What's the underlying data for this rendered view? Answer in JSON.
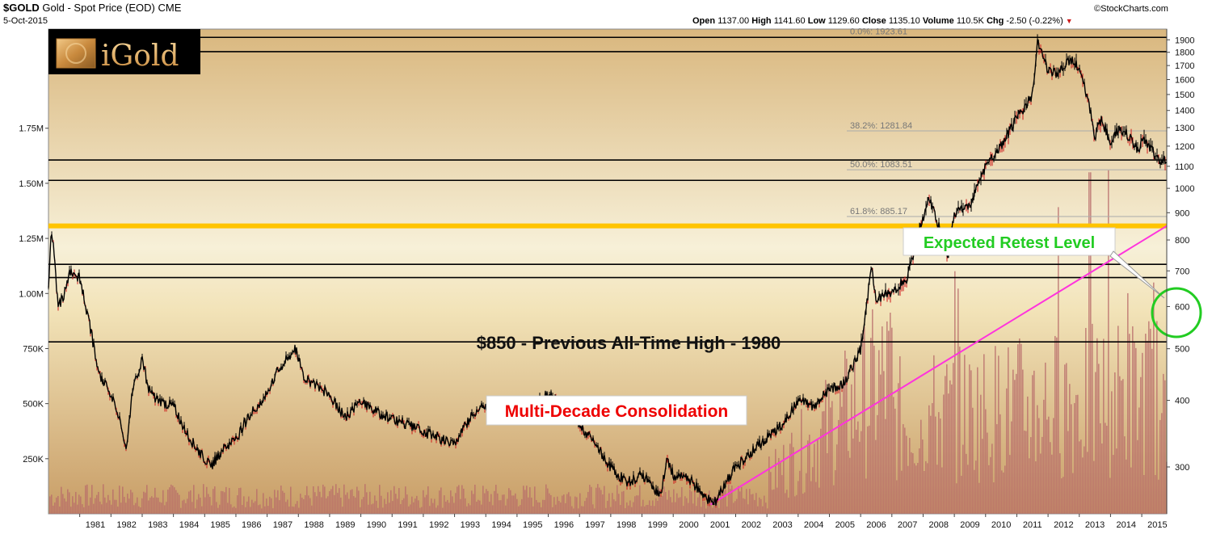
{
  "header": {
    "symbol": "$GOLD",
    "description": "Gold - Spot Price (EOD)",
    "exchange": "CME",
    "date": "5-Oct-2015",
    "source": "©StockCharts.com",
    "quote": {
      "open_label": "Open",
      "open": "1137.00",
      "high_label": "High",
      "high": "1141.60",
      "low_label": "Low",
      "low": "1129.60",
      "close_label": "Close",
      "close": "1135.10",
      "volume_label": "Volume",
      "volume": "110.5K",
      "chg_label": "Chg",
      "chg": "-2.50 (-0.22%)",
      "chg_arrow": "▼"
    }
  },
  "logo": {
    "text": "iGold"
  },
  "colors": {
    "bg_top": "#f6efd5",
    "bg_bottom": "#c9a06a",
    "price_up": "#000000",
    "price_down": "#cc1a1a",
    "volume": "#b76a6a",
    "highlight": "#ffc400",
    "trendline": "#ff33dd",
    "green": "#22cc22",
    "red_text": "#ee0000"
  },
  "chart_data": {
    "type": "line",
    "title": "$GOLD Gold - Spot Price (EOD) CME",
    "x_ticks": [
      "1981",
      "1982",
      "1983",
      "1984",
      "1985",
      "1986",
      "1987",
      "1988",
      "1989",
      "1990",
      "1991",
      "1992",
      "1993",
      "1994",
      "1995",
      "1996",
      "1997",
      "1998",
      "1999",
      "2000",
      "2001",
      "2002",
      "2003",
      "2004",
      "2005",
      "2006",
      "2007",
      "2008",
      "2009",
      "2010",
      "2011",
      "2012",
      "2013",
      "2014",
      "2015"
    ],
    "xlim": [
      1980.0,
      2015.8
    ],
    "price_axis": {
      "scale": "log",
      "ylim": [
        245,
        1990
      ],
      "ticks": [
        300,
        400,
        500,
        600,
        700,
        800,
        900,
        1000,
        1100,
        1200,
        1300,
        1400,
        1500,
        1600,
        1700,
        1800,
        1900
      ],
      "tick_labels": [
        "300",
        "400",
        "500",
        "600",
        "700",
        "800",
        "900",
        "1000",
        "1100",
        "1200",
        "1300",
        "1400",
        "1500",
        "1600",
        "1700",
        "1800",
        "1900"
      ]
    },
    "volume_axis": {
      "ylim": [
        0,
        2200000
      ],
      "ticks": [
        250000,
        500000,
        750000,
        1000000,
        1250000,
        1500000,
        1750000
      ],
      "tick_labels": [
        "250K",
        "500K",
        "750K",
        "1.00M",
        "1.25M",
        "1.50M",
        "1.75M"
      ]
    },
    "price_series": {
      "name": "Gold Spot Price",
      "x": [
        1980.0,
        1980.1,
        1980.3,
        1980.5,
        1980.7,
        1981.0,
        1981.3,
        1981.6,
        1982.0,
        1982.3,
        1982.5,
        1982.7,
        1983.0,
        1983.2,
        1983.5,
        1984.0,
        1984.5,
        1985.0,
        1985.2,
        1985.5,
        1986.0,
        1986.5,
        1986.9,
        1987.3,
        1987.9,
        1988.2,
        1988.5,
        1989.0,
        1989.5,
        1990.0,
        1990.5,
        1991.0,
        1992.0,
        1992.5,
        1993.0,
        1993.6,
        1994.0,
        1995.0,
        1996.0,
        1996.3,
        1997.0,
        1997.5,
        1998.0,
        1998.5,
        1999.0,
        1999.6,
        1999.8,
        2000.0,
        2000.5,
        2001.0,
        2001.3,
        2002.0,
        2002.5,
        2003.0,
        2003.5,
        2004.0,
        2004.5,
        2005.0,
        2005.5,
        2006.0,
        2006.35,
        2006.5,
        2007.0,
        2007.5,
        2008.0,
        2008.2,
        2008.5,
        2008.8,
        2009.0,
        2009.5,
        2010.0,
        2010.5,
        2011.0,
        2011.5,
        2011.67,
        2012.0,
        2012.3,
        2012.7,
        2012.9,
        2013.0,
        2013.3,
        2013.5,
        2013.7,
        2014.0,
        2014.3,
        2014.6,
        2014.9,
        2015.0,
        2015.3,
        2015.6,
        2015.76
      ],
      "y": [
        650,
        840,
        600,
        630,
        700,
        680,
        560,
        450,
        410,
        370,
        320,
        420,
        480,
        420,
        400,
        390,
        340,
        310,
        300,
        320,
        340,
        380,
        400,
        450,
        500,
        440,
        430,
        410,
        370,
        400,
        380,
        370,
        350,
        340,
        330,
        380,
        390,
        380,
        410,
        400,
        360,
        330,
        300,
        280,
        290,
        265,
        310,
        290,
        285,
        265,
        255,
        300,
        320,
        340,
        360,
        400,
        390,
        420,
        430,
        500,
        700,
        620,
        640,
        680,
        880,
        960,
        850,
        740,
        900,
        930,
        1100,
        1200,
        1350,
        1500,
        1895,
        1650,
        1650,
        1750,
        1700,
        1680,
        1450,
        1250,
        1350,
        1220,
        1300,
        1250,
        1180,
        1250,
        1180,
        1120,
        1135
      ]
    },
    "horizontal_levels": [
      1920,
      1805,
      1130,
      1035,
      720,
      680,
      515
    ],
    "fibonacci": [
      {
        "label": "0.0%: 1923.61",
        "value": 1923.61
      },
      {
        "label": "38.2%: 1281.84",
        "value": 1281.84
      },
      {
        "label": "50.0%: 1083.51",
        "value": 1083.51
      },
      {
        "label": "61.8%: 885.17",
        "value": 885.17
      }
    ],
    "highlight_level": {
      "value": 850,
      "label": "$850 - Previous All-Time High - 1980"
    },
    "trendline": {
      "x": [
        2001.2,
        2015.8
      ],
      "y": [
        255,
        850
      ]
    },
    "annotations": {
      "consolidation": "Multi-Decade Consolidation",
      "retest": "Expected Retest Level"
    }
  }
}
